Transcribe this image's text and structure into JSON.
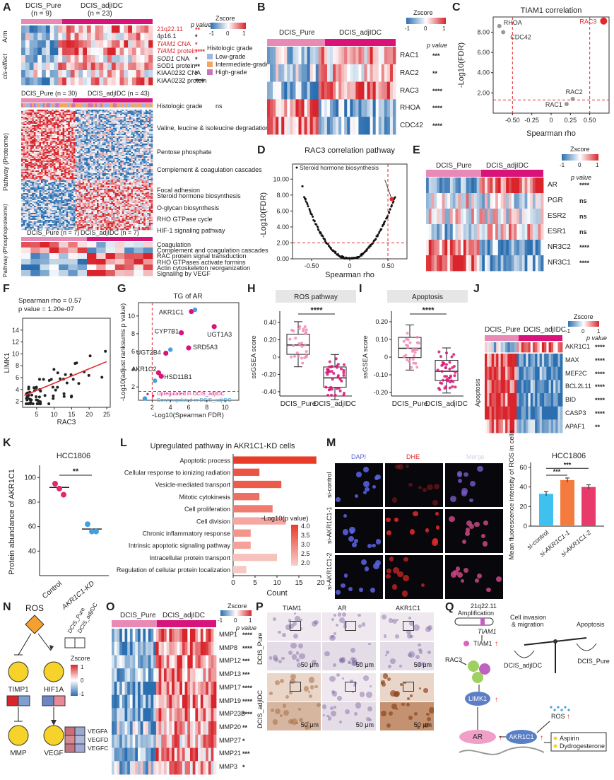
{
  "panels": {
    "A": "A",
    "B": "B",
    "C": "C",
    "D": "D",
    "E": "E",
    "F": "F",
    "G": "G",
    "H": "H",
    "I": "I",
    "J": "J",
    "K": "K",
    "L": "L",
    "M": "M",
    "N": "N",
    "O": "O",
    "P": "P",
    "Q": "Q"
  },
  "common": {
    "pure": "DCIS_Pure",
    "adj": "DCIS_adjIDC",
    "zscore": "Zscore",
    "pvalue": "p value",
    "z_min": "-1",
    "z_zero": "0",
    "z_max": "1"
  },
  "panelA": {
    "pure_n": "(n = 9)",
    "adj_n": "(n = 23)",
    "pure_n2": "DCIS_Pure (n = 30)",
    "adj_n2": "DCIS_adjIDC (n = 43)",
    "pure_n3": "DCIS_Pure (n = 7)",
    "adj_n3": "DCIS_adjIDC (n = 7)",
    "side_arm": "Arm",
    "side_cis": "cis-effect",
    "side_pathway": "Pathway (Proteome)",
    "side_phospho": "Pathway (Phosphoproteome)",
    "rows": [
      {
        "label": "21q22.11",
        "p": "**",
        "red": true
      },
      {
        "label": "4p16.1",
        "p": "*",
        "red": false
      },
      {
        "label": "TIAM1 CNA",
        "p": "*",
        "red": true
      },
      {
        "label": "TIAM1 protein",
        "p": "****",
        "red": true
      },
      {
        "label": "SOD1 CNA",
        "p": "*",
        "red": false
      },
      {
        "label": "SOD1 protein",
        "p": "**",
        "red": false
      },
      {
        "label": "KIAA0232 CNA",
        "p": "*",
        "red": false
      },
      {
        "label": "KIAA0232 protein",
        "p": "****",
        "red": false
      }
    ],
    "grade_title": "Histologic grade",
    "grades": [
      "Low-grade",
      "Intermediate-grade",
      "High-grade"
    ],
    "hist_label": "Histologic grade",
    "hist_p": "ns",
    "pathways": [
      "Valine, leucine & isoleucine degradation",
      "Pentose phosphate",
      "Complement & coagulation cascades",
      "Focal adhesion",
      "Steroid hormone biosynthesis",
      "O-glycan biosynthesis",
      "RHO GTPase cycle",
      "HIF-1 signaling pathway"
    ],
    "phospho": [
      "Coagulation",
      "Complement and coagulation cascades",
      "RAC protein signal transduction",
      "RHO GTPases activate formins",
      "Actin cytoskeleton reorganization",
      "Signaling by VEGF"
    ]
  },
  "panelB": {
    "rows": [
      {
        "label": "RAC1",
        "p": "***"
      },
      {
        "label": "RAC2",
        "p": "**"
      },
      {
        "label": "RAC3",
        "p": "****"
      },
      {
        "label": "RHOA",
        "p": "****"
      },
      {
        "label": "CDC42",
        "p": "****"
      }
    ]
  },
  "chart_data": [
    {
      "id": "C",
      "type": "scatter",
      "title": "TIAM1 correlation",
      "xlabel": "Spearman rho",
      "ylabel": "-Log10(FDR)",
      "xlim": [
        -0.75,
        0.75
      ],
      "ylim": [
        0,
        9.5
      ],
      "xticks": [
        "-0.50",
        "-0.25",
        "0",
        "0.25",
        "0.50"
      ],
      "yticks": [
        "2.00",
        "4.00",
        "6.00",
        "8.00"
      ],
      "points": [
        {
          "name": "RAC3",
          "x": 0.68,
          "y": 9.1
        },
        {
          "name": "RHOA",
          "x": -0.67,
          "y": 8.6
        },
        {
          "name": "CDC42",
          "x": -0.62,
          "y": 8.0
        },
        {
          "name": "RAC2",
          "x": 0.28,
          "y": 1.4
        },
        {
          "name": "RAC1",
          "x": 0.2,
          "y": 0.9
        }
      ]
    },
    {
      "id": "D",
      "type": "scatter",
      "title": "RAC3 correlation pathway",
      "xlabel": "Spearman rho",
      "ylabel": "-Log10(FDR)",
      "xlim": [
        -0.75,
        0.75
      ],
      "ylim": [
        0,
        11
      ],
      "xticks": [
        "-0.50",
        "0",
        "0.50"
      ],
      "yticks": [
        "0.00",
        "2.00",
        "4.00",
        "6.00",
        "8.00",
        "10.00"
      ],
      "annotation": "Steroid hormone biosynthesis",
      "highlight": {
        "x": 0.55,
        "y": 7.5
      }
    },
    {
      "id": "F",
      "type": "scatter",
      "xlabel": "RAC3",
      "ylabel": "LIMK1",
      "xlim": [
        1,
        26
      ],
      "ylim": [
        1,
        16
      ],
      "xticks": [
        "5",
        "10",
        "15",
        "20",
        "25"
      ],
      "yticks": [
        "2",
        "4",
        "6",
        "8",
        "10",
        "12",
        "14"
      ],
      "stats": "Spearman  rho = 0.57",
      "pval": "p value = 1.20e-07"
    },
    {
      "id": "G",
      "type": "scatter",
      "title": "TG of AR",
      "xlabel": "-Log10(Spearman FDR)",
      "ylabel": "-Log10(adjust ranksums p value)",
      "xticks": [
        "2",
        "4",
        "6",
        "8",
        "10"
      ],
      "yticks": [
        "2",
        "4",
        "6",
        "8",
        "10"
      ],
      "points": [
        {
          "name": "AKR1C1",
          "x": 6.3,
          "y": 10.5
        },
        {
          "name": "UGT1A3",
          "x": 8.8,
          "y": 8.8
        },
        {
          "name": "CYP7B1",
          "x": 5.2,
          "y": 8.1
        },
        {
          "name": "SRD5A3",
          "x": 6.0,
          "y": 6.4
        },
        {
          "name": "UGT2B4",
          "x": 3.5,
          "y": 5.8
        },
        {
          "name": "AKR1C2",
          "x": 2.7,
          "y": 3.6
        },
        {
          "name": "HSD11B1",
          "x": 3.0,
          "y": 3.2
        }
      ],
      "legend": [
        "Upregulated in DCIS_adjIDC",
        "Downregulated in DCIS_adjIDC"
      ]
    },
    {
      "id": "H",
      "type": "box",
      "title": "ROS pathway",
      "ylabel": "ssGSEA score",
      "categories": [
        "DCIS_Pure",
        "DCIS_adjIDC"
      ],
      "medians": [
        0.14,
        -0.24
      ],
      "yticks": [
        "0.40",
        "0.20",
        "0",
        "-0.20",
        "-0.40"
      ],
      "sig": "****"
    },
    {
      "id": "I",
      "type": "box",
      "title": "Apoptosis",
      "ylabel": "ssGSEA score",
      "categories": [
        "DCIS_Pure",
        "DCIS_adjIDC"
      ],
      "medians": [
        0.05,
        -0.08
      ],
      "yticks": [
        "0.20",
        "0.10",
        "0",
        "-0.10",
        "-0.20"
      ],
      "sig": "****"
    },
    {
      "id": "K",
      "type": "dot",
      "title": "HCC1806",
      "ylabel": "Protein abundance of AKR1C1",
      "categories": [
        "Control",
        "AKR1C1-KD"
      ],
      "values": [
        [
          95,
          91,
          86
        ],
        [
          62,
          56,
          56
        ]
      ],
      "means": [
        92,
        58
      ],
      "yticks": [
        "40",
        "60",
        "80",
        "100"
      ],
      "sig": "**"
    },
    {
      "id": "L",
      "type": "bar",
      "title": "Upregulated pathway in AKR1C1-KD cells",
      "xlabel": "Count",
      "xticks": [
        "0",
        "5",
        "10",
        "15",
        "20"
      ],
      "categories": [
        "Apoptotic process",
        "Cellular response to ionizing radiation",
        "Vesicle-mediated transport",
        "Mitotic cytokinesis",
        "Cell proliferation",
        "Cell division",
        "Chronic inflammatory response",
        "Intrinsic apoptotic signaling pathway",
        "Intracellular protein transport",
        "Regulation of cellular protein localization"
      ],
      "values": [
        19,
        6,
        11,
        6,
        9,
        12,
        4,
        4,
        10,
        3
      ],
      "colorval": [
        4.0,
        3.6,
        3.5,
        3.2,
        3.0,
        2.3,
        2.6,
        2.4,
        1.9,
        1.8
      ],
      "legend_title": "-Log10(p value)",
      "legend_ticks": [
        "4.0",
        "3.5",
        "3.0",
        "2.5",
        "2.0"
      ]
    },
    {
      "id": "M",
      "type": "bar",
      "title": "HCC1806",
      "ylabel": "Mean fluorescence intensity of ROS in cells",
      "categories": [
        "si-control",
        "si-AKR1C1-1",
        "si-AKR1C1-2"
      ],
      "values": [
        33,
        47,
        40
      ],
      "colors": [
        "#3fc1f0",
        "#f47b3e",
        "#e83a6b"
      ],
      "yticks": [
        "0",
        "20",
        "40",
        "60"
      ],
      "sig": [
        "***",
        "***"
      ]
    }
  ],
  "panelE": {
    "rows": [
      {
        "label": "AR",
        "p": "****"
      },
      {
        "label": "PGR",
        "p": "ns"
      },
      {
        "label": "ESR2",
        "p": "ns"
      },
      {
        "label": "ESR1",
        "p": "ns"
      },
      {
        "label": "NR3C2",
        "p": "****"
      },
      {
        "label": "NR3C1",
        "p": "****"
      }
    ]
  },
  "panelJ": {
    "top": {
      "label": "AKR1C1",
      "p": "****"
    },
    "rows": [
      {
        "label": "MAX",
        "p": "****"
      },
      {
        "label": "MEF2C",
        "p": "****"
      },
      {
        "label": "BCL2L11",
        "p": "****"
      },
      {
        "label": "BID",
        "p": "****"
      },
      {
        "label": "CASP3",
        "p": "****"
      },
      {
        "label": "APAF1",
        "p": "**"
      }
    ],
    "side": "Apoptosis"
  },
  "panelM": {
    "channels": [
      "DAPI",
      "DHE",
      "Merge"
    ],
    "rows": [
      "si-control",
      "si-AKR1C1-1",
      "si-AKR1C1-2"
    ]
  },
  "panelN": {
    "ros": "ROS",
    "timp": "TIMP1",
    "hif": "HIF1A",
    "mmp": "MMP",
    "vegf": "VEGF",
    "vegfs": [
      "VEGFA",
      "VEGFD",
      "VEGFC"
    ],
    "z_top": "1",
    "z_mid": "0",
    "z_bot": "-1"
  },
  "panelO": {
    "rows": [
      {
        "label": "MMP1",
        "p": "****"
      },
      {
        "label": "MMP8",
        "p": "****"
      },
      {
        "label": "MMP12",
        "p": "***"
      },
      {
        "label": "MMP13",
        "p": "***"
      },
      {
        "label": "MMP17",
        "p": "****"
      },
      {
        "label": "MMP19",
        "p": "****"
      },
      {
        "label": "MMP23B",
        "p": "****"
      },
      {
        "label": "MMP20",
        "p": "**"
      },
      {
        "label": "MMP27",
        "p": "*"
      },
      {
        "label": "MMP21",
        "p": "***"
      },
      {
        "label": "MMP3",
        "p": "*"
      }
    ]
  },
  "panelP": {
    "cols": [
      "TIAM1",
      "AR",
      "AKR1C1"
    ],
    "rows": [
      "DCIS_Pure",
      "DCIS_adjIDC"
    ],
    "scale": "50 μm"
  },
  "panelQ": {
    "amp": "21q22.11 Amplification",
    "tiam": "TIAM1",
    "rac3": "RAC3",
    "limk": "LIMK1",
    "ar": "AR",
    "akr": "AKR1C1",
    "ros": "ROS",
    "inv": "Cell invasion & migration",
    "apop": "Apoptosis",
    "adj": "DCIS_adjIDC",
    "pure": "DCIS_Pure",
    "drugs": [
      "Aspirin",
      "Dydrogesterone"
    ]
  }
}
